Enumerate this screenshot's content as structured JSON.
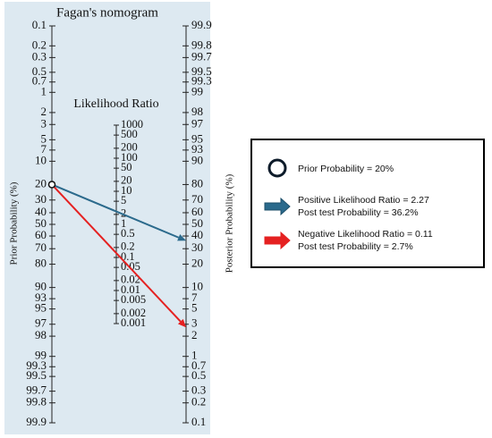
{
  "chart_data": {
    "type": "nomogram",
    "title": "Fagan's nomogram",
    "left_label": "Prior Probability (%)",
    "left_ticks": [
      0.1,
      0.2,
      0.3,
      0.5,
      0.7,
      1,
      2,
      3,
      5,
      7,
      10,
      20,
      30,
      40,
      50,
      60,
      70,
      80,
      90,
      93,
      95,
      97,
      98,
      99,
      99.3,
      99.5,
      99.7,
      99.8,
      99.9
    ],
    "middle_label": "Likelihood Ratio",
    "middle_ticks": [
      1000,
      500,
      200,
      100,
      50,
      20,
      10,
      5,
      2,
      1,
      0.5,
      0.2,
      0.1,
      0.05,
      0.02,
      0.01,
      0.005,
      0.002,
      0.001
    ],
    "right_label": "Posterior Probability (%)",
    "right_ticks": [
      99.9,
      99.8,
      99.7,
      99.5,
      99.3,
      99,
      98,
      97,
      95,
      93,
      90,
      80,
      70,
      60,
      50,
      40,
      30,
      20,
      10,
      7,
      5,
      3,
      2,
      1,
      0.7,
      0.5,
      0.3,
      0.2,
      0.1
    ],
    "prior": 20,
    "prior_label": "Prior Probability = 20%",
    "series": [
      {
        "name": "Positive Likelihood Ratio = 2.27",
        "color": "#2b6a8c",
        "lr": 2.27,
        "post": 36.2,
        "post_label": "Post test Probability = 36.2%"
      },
      {
        "name": "Negative Likelihood Ratio = 0.11",
        "color": "#e52121",
        "lr": 0.11,
        "post": 2.7,
        "post_label": "Post test Probability = 2.7%"
      }
    ]
  }
}
